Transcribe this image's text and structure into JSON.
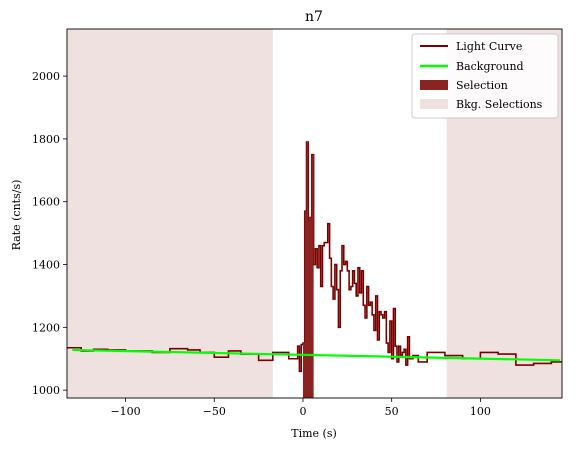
{
  "chart_data": {
    "type": "line",
    "title": "n7",
    "xlabel": "Time (s)",
    "ylabel": "Rate (cnts/s)",
    "xlim": [
      -133,
      146
    ],
    "ylim": [
      975,
      2150
    ],
    "xticks": [
      -100,
      -50,
      0,
      50,
      100
    ],
    "xtick_labels": [
      "−100",
      "−50",
      "0",
      "50",
      "100"
    ],
    "yticks": [
      1000,
      1200,
      1400,
      1600,
      1800,
      2000
    ],
    "ytick_labels": [
      "1000",
      "1200",
      "1400",
      "1600",
      "1800",
      "2000"
    ],
    "legend_position": "top-right",
    "legend": [
      "Light Curve",
      "Background",
      "Selection",
      "Bkg. Selections"
    ],
    "colors": {
      "light_curve": "#7a0000",
      "background": "#00ff00",
      "selection": "#8b2323",
      "bkg_selection": "#f0e1e1"
    },
    "series": [
      {
        "name": "Light Curve",
        "kind": "step",
        "x": [
          -133,
          -125,
          -118,
          -110,
          -100,
          -85,
          -75,
          -65,
          -58,
          -50,
          -42,
          -35,
          -25,
          -17,
          -8,
          -3,
          -2,
          -1,
          0,
          1,
          2,
          3,
          4,
          5,
          6,
          7,
          8,
          9,
          10,
          11,
          12,
          13,
          14,
          15,
          16,
          17,
          18,
          19,
          20,
          21,
          22,
          23,
          24,
          25,
          26,
          27,
          28,
          29,
          30,
          31,
          32,
          33,
          34,
          35,
          36,
          37,
          38,
          39,
          40,
          41,
          42,
          43,
          44,
          45,
          46,
          47,
          48,
          49,
          50,
          51,
          52,
          53,
          54,
          55,
          56,
          57,
          58,
          59,
          60,
          62,
          65,
          70,
          80,
          90,
          100,
          110,
          120,
          130,
          140
        ],
        "y": [
          1135,
          1125,
          1130,
          1128,
          1125,
          1120,
          1132,
          1128,
          1120,
          1105,
          1125,
          1115,
          1095,
          1120,
          1100,
          1140,
          1060,
          1145,
          1150,
          1570,
          1790,
          1540,
          1550,
          1750,
          1400,
          1450,
          1390,
          1460,
          1330,
          1460,
          1470,
          1470,
          1530,
          1420,
          1330,
          1290,
          1400,
          1320,
          1200,
          1380,
          1460,
          1400,
          1410,
          1380,
          1320,
          1330,
          1380,
          1340,
          1300,
          1390,
          1310,
          1380,
          1270,
          1230,
          1330,
          1270,
          1280,
          1240,
          1190,
          1300,
          1160,
          1250,
          1240,
          1230,
          1250,
          1150,
          1120,
          1220,
          1100,
          1260,
          1140,
          1090,
          1140,
          1110,
          1120,
          1130,
          1080,
          1170,
          1100,
          1110,
          1090,
          1120,
          1110,
          1100,
          1120,
          1115,
          1080,
          1085,
          1090
        ]
      },
      {
        "name": "Background",
        "kind": "line",
        "x": [
          -130,
          145
        ],
        "y": [
          1128,
          1095
        ]
      }
    ],
    "selection": {
      "x": [
        0,
        6
      ]
    },
    "bkg_selections": [
      {
        "x": [
          -133,
          -17
        ]
      },
      {
        "x": [
          81,
          146
        ]
      }
    ]
  }
}
